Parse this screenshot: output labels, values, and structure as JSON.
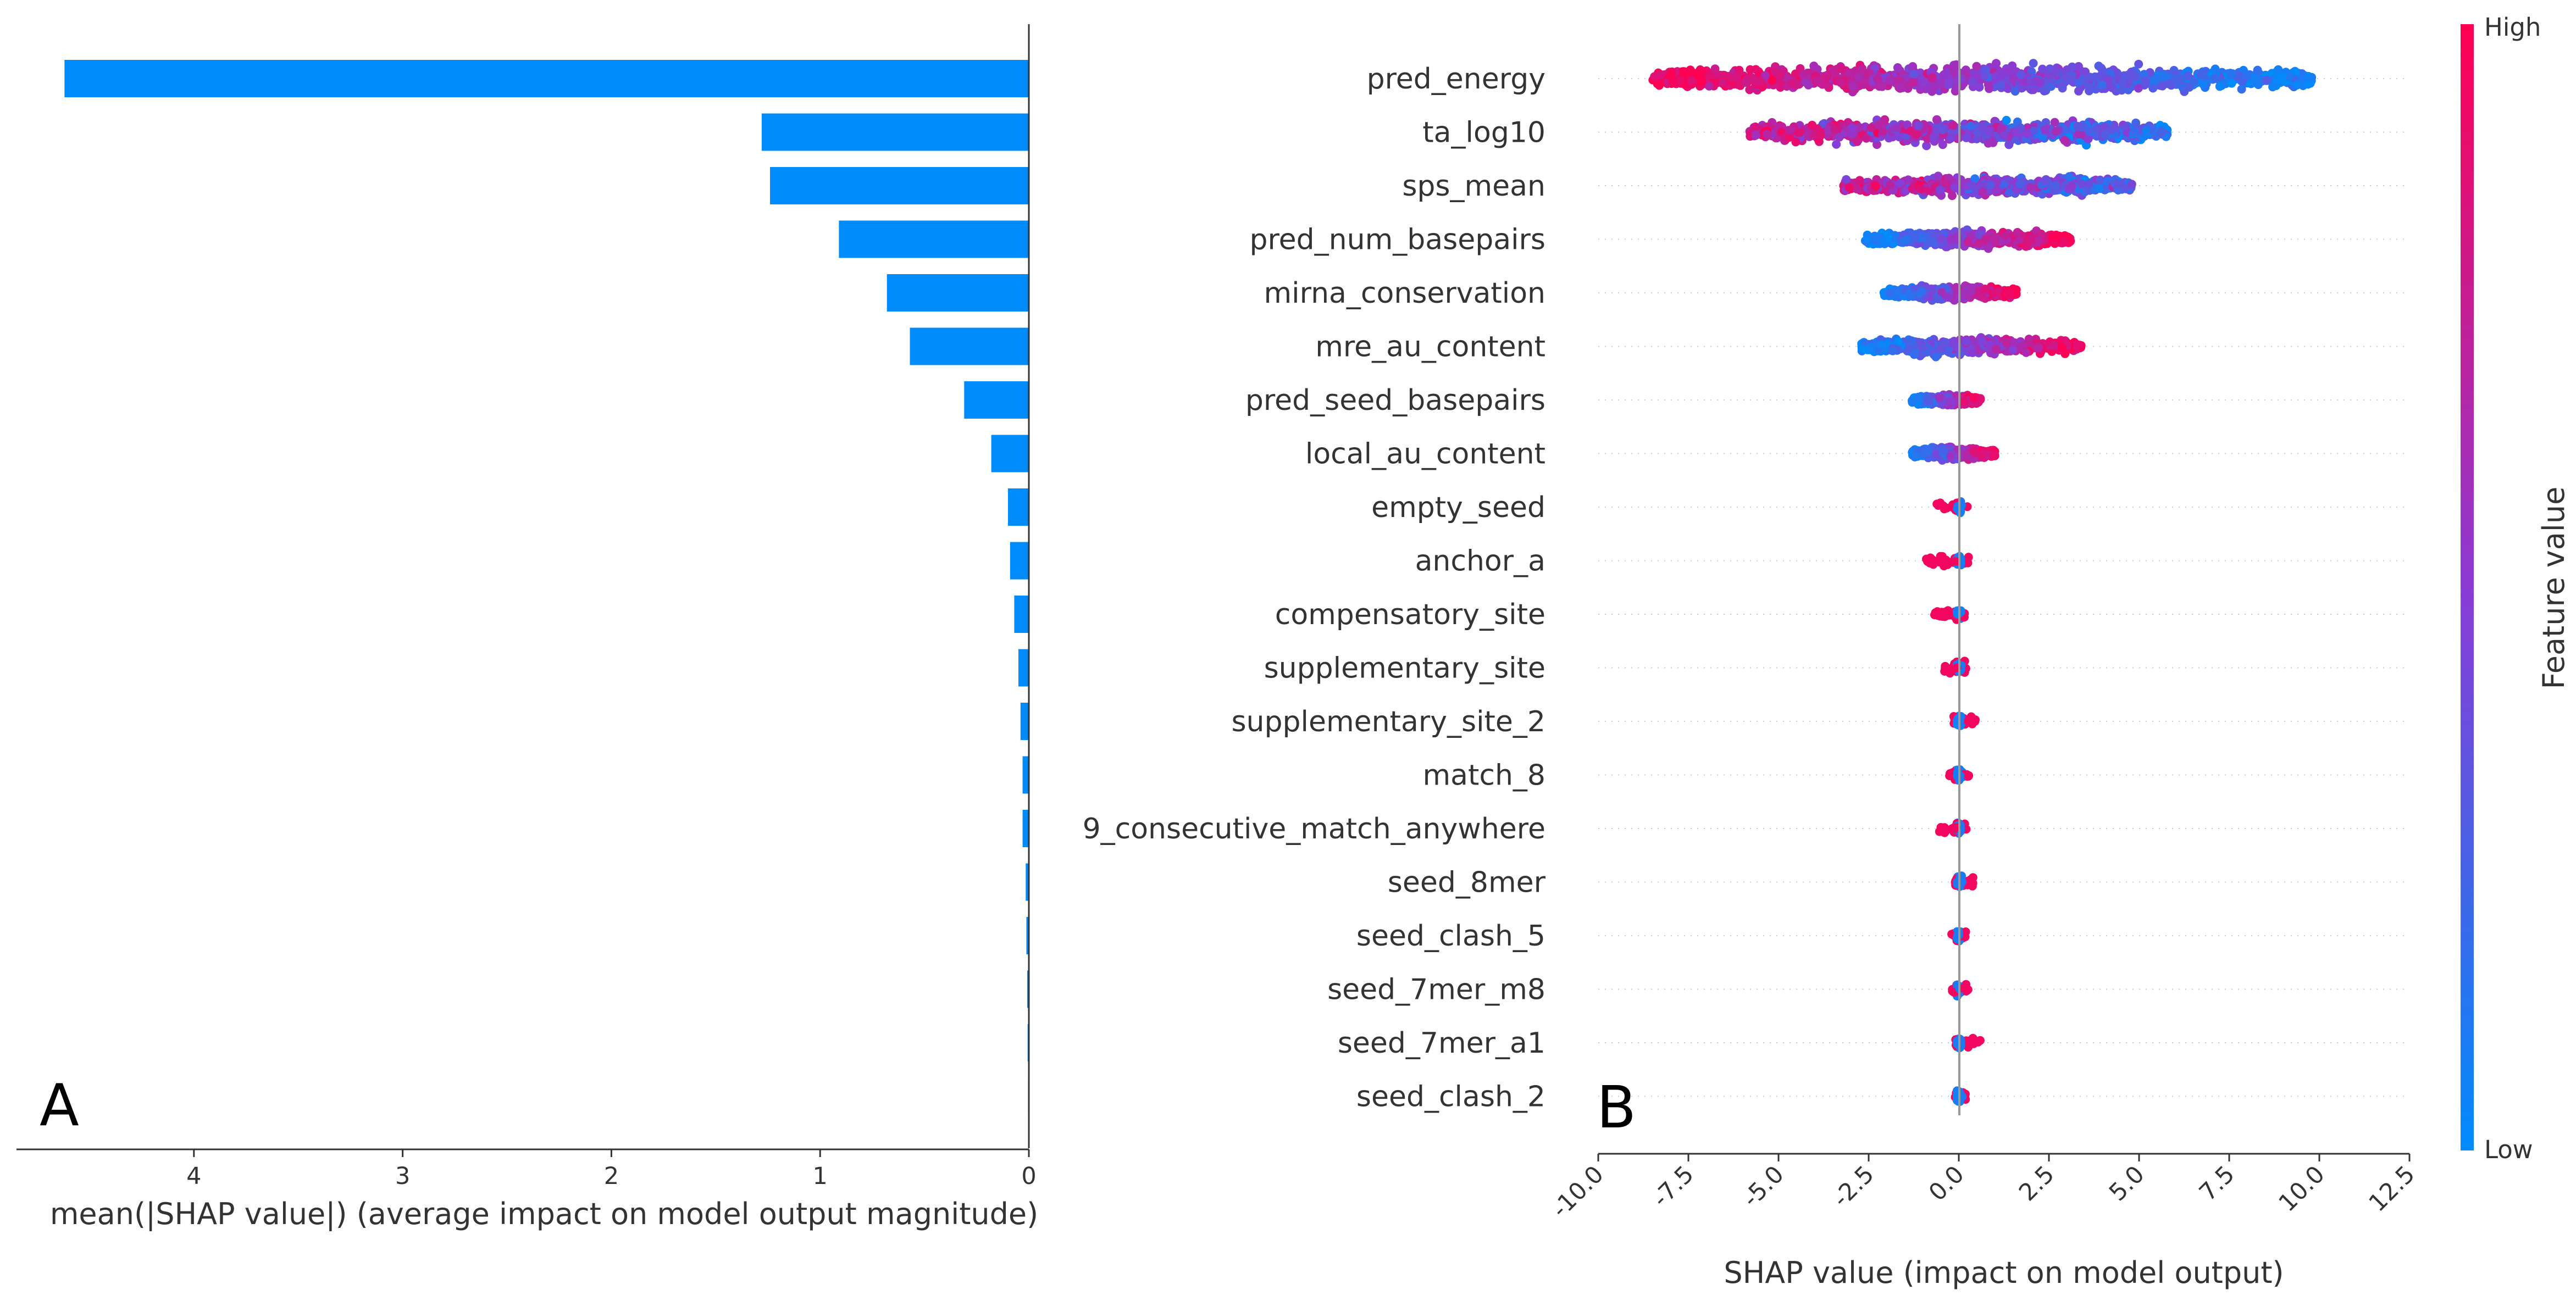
{
  "colors": {
    "bar": "#008bfb",
    "low": "#008bfb",
    "high": "#ff0052",
    "mid": "#8b3bd4",
    "axis": "#333333",
    "zero_line": "#999999",
    "grid": "#cccccc"
  },
  "panel_a": {
    "letter": "A",
    "xlabel": "mean(|SHAP value|) (average impact on model output magnitude)",
    "ticks": [
      4,
      3,
      2,
      1,
      0
    ],
    "tick_labels": [
      "4",
      "3",
      "2",
      "1",
      "0"
    ],
    "xlim": [
      4.85,
      0
    ]
  },
  "panel_b": {
    "letter": "B",
    "xlabel": "SHAP value (impact on model output)",
    "ticks": [
      -10.0,
      -7.5,
      -5.0,
      -2.5,
      0.0,
      2.5,
      5.0,
      7.5,
      10.0,
      12.5
    ],
    "tick_labels": [
      "-10.0",
      "-7.5",
      "-5.0",
      "-2.5",
      "0.0",
      "2.5",
      "5.0",
      "7.5",
      "10.0",
      "12.5"
    ],
    "xlim": [
      -10.0,
      12.5
    ]
  },
  "colorbar": {
    "high": "High",
    "low": "Low",
    "title": "Feature value"
  },
  "chart_data": [
    {
      "type": "bar",
      "orientation": "horizontal",
      "categories": [
        "pred_energy",
        "ta_log10",
        "sps_mean",
        "pred_num_basepairs",
        "mirna_conservation",
        "mre_au_content",
        "pred_seed_basepairs",
        "local_au_content",
        "empty_seed",
        "anchor_a",
        "compensatory_site",
        "supplementary_site",
        "supplementary_site_2",
        "match_8",
        "9_consecutive_match_anywhere",
        "seed_8mer",
        "seed_clash_5",
        "seed_7mer_m8",
        "seed_7mer_a1",
        "seed_clash_2"
      ],
      "values": [
        4.62,
        1.28,
        1.24,
        0.91,
        0.68,
        0.57,
        0.31,
        0.18,
        0.1,
        0.09,
        0.07,
        0.05,
        0.04,
        0.03,
        0.03,
        0.015,
        0.012,
        0.008,
        0.006,
        0.004
      ],
      "xlabel": "mean(|SHAP value|) (average impact on model output magnitude)",
      "xlim": [
        4.85,
        0
      ]
    },
    {
      "type": "scatter",
      "subtype": "beeswarm",
      "categories": [
        "pred_energy",
        "ta_log10",
        "sps_mean",
        "pred_num_basepairs",
        "mirna_conservation",
        "mre_au_content",
        "pred_seed_basepairs",
        "local_au_content",
        "empty_seed",
        "anchor_a",
        "compensatory_site",
        "supplementary_site",
        "supplementary_site_2",
        "match_8",
        "9_consecutive_match_anywhere",
        "seed_8mer",
        "seed_clash_5",
        "seed_7mer_m8",
        "seed_7mer_a1",
        "seed_clash_2"
      ],
      "ranges": [
        [
          -8.5,
          9.8
        ],
        [
          -5.8,
          5.8
        ],
        [
          -3.2,
          4.8
        ],
        [
          -2.6,
          3.1
        ],
        [
          -2.1,
          1.6
        ],
        [
          -2.7,
          3.4
        ],
        [
          -1.3,
          0.6
        ],
        [
          -1.3,
          1.0
        ],
        [
          -0.7,
          0.3
        ],
        [
          -0.9,
          0.3
        ],
        [
          -0.7,
          0.2
        ],
        [
          -0.4,
          0.2
        ],
        [
          -0.2,
          0.5
        ],
        [
          -0.3,
          0.3
        ],
        [
          -0.6,
          0.3
        ],
        [
          -0.1,
          0.4
        ],
        [
          -0.2,
          0.3
        ],
        [
          -0.2,
          0.3
        ],
        [
          -0.1,
          0.6
        ],
        [
          -0.1,
          0.2
        ]
      ],
      "xlabel": "SHAP value (impact on model output)",
      "xlim": [
        -10.0,
        12.5
      ],
      "colorbar": {
        "title": "Feature value",
        "high": "High",
        "low": "Low"
      }
    }
  ]
}
